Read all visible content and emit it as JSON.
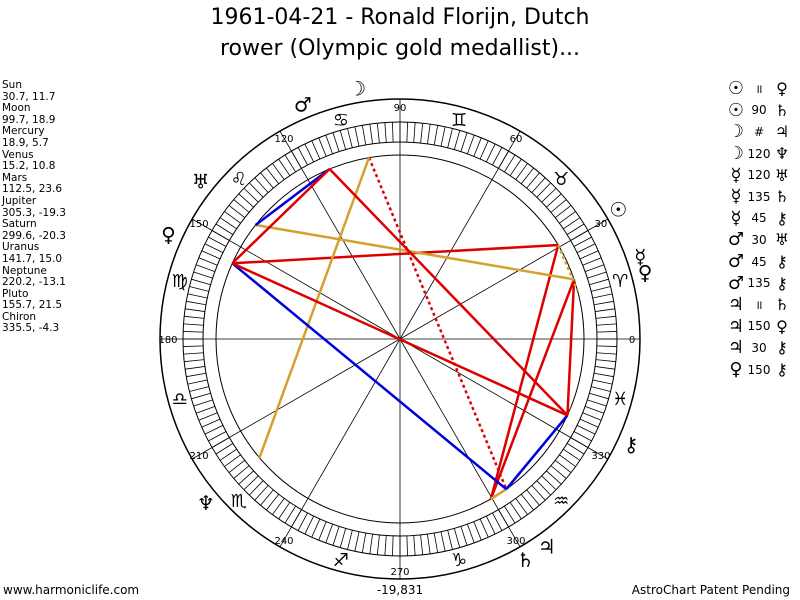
{
  "title": {
    "line1": "1961-04-21 - Ronald Florijn, Dutch",
    "line2": "rower (Olympic gold medallist)..."
  },
  "positions": [
    {
      "name": "Sun",
      "value": "30.7, 11.7"
    },
    {
      "name": "Moon",
      "value": "99.7, 18.9"
    },
    {
      "name": "Mercury",
      "value": "18.9, 5.7"
    },
    {
      "name": "Venus",
      "value": "15.2, 10.8"
    },
    {
      "name": "Mars",
      "value": "112.5, 23.6"
    },
    {
      "name": "Jupiter",
      "value": "305.3, -19.3"
    },
    {
      "name": "Saturn",
      "value": "299.6, -20.3"
    },
    {
      "name": "Uranus",
      "value": "141.7, 15.0"
    },
    {
      "name": "Neptune",
      "value": "220.2, -13.1"
    },
    {
      "name": "Pluto",
      "value": "155.7, 21.5"
    },
    {
      "name": "Chiron",
      "value": "335.5, -4.3"
    }
  ],
  "aspects": [
    {
      "a": "☉",
      "m": "॥",
      "b": "♀"
    },
    {
      "a": "☉",
      "m": "90",
      "b": "♄"
    },
    {
      "a": "☽",
      "m": "#",
      "b": "♃"
    },
    {
      "a": "☽",
      "m": "120",
      "b": "♆"
    },
    {
      "a": "☿",
      "m": "120",
      "b": "♅"
    },
    {
      "a": "☿",
      "m": "135",
      "b": "♄"
    },
    {
      "a": "☿",
      "m": "45",
      "b": "⚷"
    },
    {
      "a": "♂",
      "m": "30",
      "b": "♅"
    },
    {
      "a": "♂",
      "m": "45",
      "b": "⚷"
    },
    {
      "a": "♂",
      "m": "135",
      "b": "⚷"
    },
    {
      "a": "♃",
      "m": "॥",
      "b": "♄"
    },
    {
      "a": "♃",
      "m": "150",
      "b": "♀"
    },
    {
      "a": "♃",
      "m": "30",
      "b": "⚷"
    },
    {
      "a": "♀",
      "m": "150",
      "b": "⚷"
    }
  ],
  "wheel": {
    "degree_labels": [
      {
        "deg": 0,
        "label": "0"
      },
      {
        "deg": 30,
        "label": "30"
      },
      {
        "deg": 60,
        "label": "60"
      },
      {
        "deg": 90,
        "label": "90"
      },
      {
        "deg": 120,
        "label": "120"
      },
      {
        "deg": 150,
        "label": "150"
      },
      {
        "deg": 180,
        "label": "180"
      },
      {
        "deg": 210,
        "label": "210"
      },
      {
        "deg": 240,
        "label": "240"
      },
      {
        "deg": 270,
        "label": "270"
      },
      {
        "deg": 300,
        "label": "300"
      },
      {
        "deg": 330,
        "label": "330"
      }
    ],
    "signs": [
      {
        "symbol": "♈",
        "deg": 15
      },
      {
        "symbol": "♉",
        "deg": 45
      },
      {
        "symbol": "♊",
        "deg": 75
      },
      {
        "symbol": "♋",
        "deg": 105
      },
      {
        "symbol": "♌",
        "deg": 135
      },
      {
        "symbol": "♍",
        "deg": 165
      },
      {
        "symbol": "♎",
        "deg": 195
      },
      {
        "symbol": "♏",
        "deg": 225
      },
      {
        "symbol": "♐",
        "deg": 255
      },
      {
        "symbol": "♑",
        "deg": 285
      },
      {
        "symbol": "♒",
        "deg": 315
      },
      {
        "symbol": "♓",
        "deg": 345
      }
    ],
    "planets": [
      {
        "name": "Sun",
        "symbol": "☉",
        "deg": 30.7
      },
      {
        "name": "Moon",
        "symbol": "☽",
        "deg": 99.7
      },
      {
        "name": "Mercury",
        "symbol": "☿",
        "deg": 18.9
      },
      {
        "name": "Venus",
        "symbol": "♀",
        "deg": 15.2
      },
      {
        "name": "Mars",
        "symbol": "♂",
        "deg": 112.5
      },
      {
        "name": "Jupiter",
        "symbol": "♃",
        "deg": 305.3
      },
      {
        "name": "Saturn",
        "symbol": "♄",
        "deg": 299.6
      },
      {
        "name": "Uranus",
        "symbol": "♅",
        "deg": 141.7
      },
      {
        "name": "Neptune",
        "symbol": "♆",
        "deg": 220.2
      },
      {
        "name": "Pluto",
        "symbol": "♀",
        "deg": 155.7
      },
      {
        "name": "Chiron",
        "symbol": "⚷",
        "deg": 335.5
      }
    ],
    "aspect_lines": [
      {
        "from": "Sun",
        "to": "Pluto",
        "color": "#dd0000",
        "style": "solid"
      },
      {
        "from": "Sun",
        "to": "Saturn",
        "color": "#dd0000",
        "style": "solid"
      },
      {
        "from": "Moon",
        "to": "Jupiter",
        "color": "#dd0000",
        "style": "dotted"
      },
      {
        "from": "Moon",
        "to": "Neptune",
        "color": "#d4a030",
        "style": "solid"
      },
      {
        "from": "Mercury",
        "to": "Uranus",
        "color": "#d4a030",
        "style": "solid"
      },
      {
        "from": "Mercury",
        "to": "Saturn",
        "color": "#dd0000",
        "style": "solid"
      },
      {
        "from": "Mercury",
        "to": "Chiron",
        "color": "#dd0000",
        "style": "solid"
      },
      {
        "from": "Mars",
        "to": "Uranus",
        "color": "#0000dd",
        "style": "solid"
      },
      {
        "from": "Mars",
        "to": "Pluto",
        "color": "#dd0000",
        "style": "solid"
      },
      {
        "from": "Mars",
        "to": "Chiron",
        "color": "#dd0000",
        "style": "solid"
      },
      {
        "from": "Jupiter",
        "to": "Saturn",
        "color": "#d4a030",
        "style": "solid"
      },
      {
        "from": "Jupiter",
        "to": "Pluto",
        "color": "#0000dd",
        "style": "solid"
      },
      {
        "from": "Jupiter",
        "to": "Chiron",
        "color": "#0000dd",
        "style": "solid"
      },
      {
        "from": "Pluto",
        "to": "Chiron",
        "color": "#dd0000",
        "style": "solid"
      },
      {
        "from": "Sun",
        "to": "Venus",
        "color": "#d4a030",
        "style": "dotted"
      }
    ]
  },
  "footer": {
    "website": "www.harmoniclife.com",
    "center": "-19,831",
    "patent": "AstroChart Patent Pending"
  }
}
